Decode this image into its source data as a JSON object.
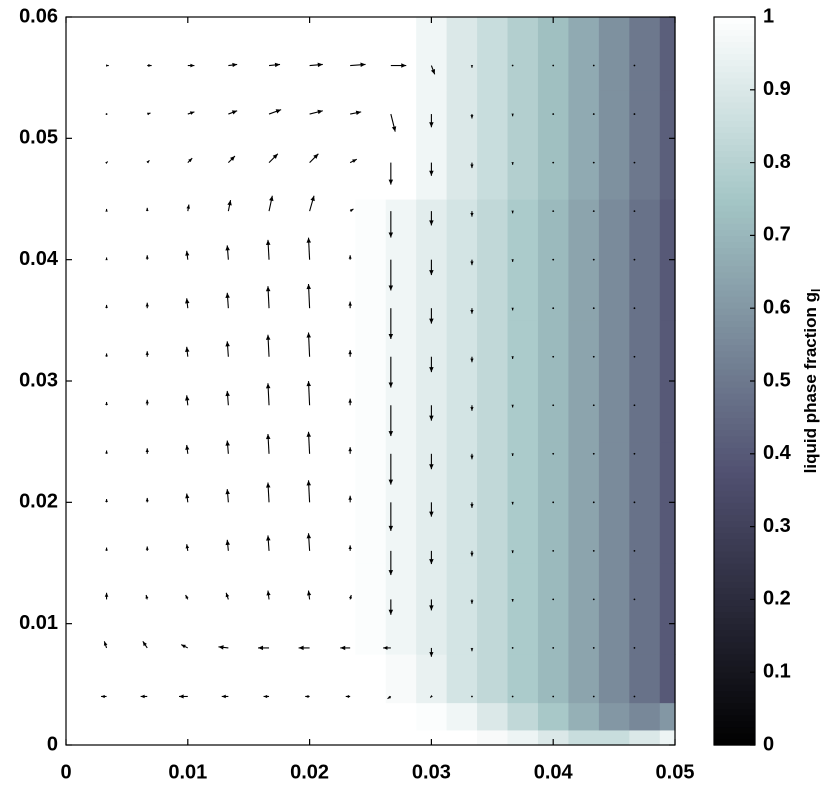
{
  "chart_data": {
    "type": "field",
    "xlim": [
      0,
      0.05
    ],
    "xticks": [
      0,
      0.01,
      0.02,
      0.03,
      0.04,
      0.05
    ],
    "ylim": [
      0,
      0.06
    ],
    "yticks": [
      0,
      0.01,
      0.02,
      0.03,
      0.04,
      0.05,
      0.06
    ],
    "colormap": [
      [
        0,
        "#000000"
      ],
      [
        0.375,
        "#515171"
      ],
      [
        0.75,
        "#a4c6c6"
      ],
      [
        1,
        "#ffffff"
      ]
    ],
    "arrow_color": "#000000",
    "colorbar": {
      "label": "liquid phase fraction g",
      "label_subscript": "l",
      "lim": [
        0,
        1
      ],
      "ticks": [
        0,
        0.1,
        0.2,
        0.3,
        0.4,
        0.5,
        0.6,
        0.7,
        0.8,
        0.9,
        1
      ]
    },
    "field": {
      "x": [
        0,
        0.0025,
        0.005,
        0.0075,
        0.01,
        0.0125,
        0.015,
        0.0175,
        0.02,
        0.0225,
        0.025,
        0.0275,
        0.03,
        0.0325,
        0.035,
        0.0375,
        0.04,
        0.0425,
        0.045,
        0.0475,
        0.05
      ],
      "y": [
        0.0005,
        0.002,
        0.005,
        0.01,
        0.02,
        0.03,
        0.04,
        0.05,
        0.058
      ],
      "values": [
        [
          1,
          1,
          1,
          1,
          1,
          1,
          1,
          1,
          1,
          1,
          1,
          1,
          1,
          1,
          0.98,
          0.95,
          0.9,
          0.85,
          0.85,
          0.9,
          0.95
        ],
        [
          1,
          1,
          1,
          1,
          1,
          1,
          1,
          1,
          1,
          1,
          1,
          1,
          0.99,
          0.96,
          0.9,
          0.83,
          0.76,
          0.68,
          0.6,
          0.55,
          0.6
        ],
        [
          1,
          1,
          1,
          1,
          1,
          1,
          1,
          1,
          1,
          1,
          1,
          0.98,
          0.94,
          0.88,
          0.83,
          0.77,
          0.71,
          0.64,
          0.56,
          0.48,
          0.4
        ],
        [
          1,
          1,
          1,
          1,
          1,
          1,
          1,
          1,
          1,
          1,
          0.99,
          0.96,
          0.92,
          0.88,
          0.83,
          0.77,
          0.71,
          0.64,
          0.56,
          0.48,
          0.4
        ],
        [
          1,
          1,
          1,
          1,
          1,
          1,
          1,
          1,
          1,
          1,
          0.99,
          0.96,
          0.92,
          0.88,
          0.83,
          0.77,
          0.71,
          0.64,
          0.56,
          0.48,
          0.4
        ],
        [
          1,
          1,
          1,
          1,
          1,
          1,
          1,
          1,
          1,
          1,
          0.99,
          0.96,
          0.92,
          0.88,
          0.83,
          0.77,
          0.71,
          0.64,
          0.56,
          0.48,
          0.4
        ],
        [
          1,
          1,
          1,
          1,
          1,
          1,
          1,
          1,
          1,
          1,
          0.99,
          0.96,
          0.92,
          0.88,
          0.83,
          0.77,
          0.71,
          0.64,
          0.56,
          0.48,
          0.4
        ],
        [
          1,
          1,
          1,
          1,
          1,
          1,
          1,
          1,
          1,
          1,
          1,
          1,
          0.96,
          0.9,
          0.85,
          0.79,
          0.73,
          0.66,
          0.58,
          0.5,
          0.42
        ],
        [
          1,
          1,
          1,
          1,
          1,
          1,
          1,
          1,
          1,
          1,
          1,
          1,
          0.96,
          0.9,
          0.85,
          0.79,
          0.73,
          0.66,
          0.58,
          0.5,
          0.42
        ]
      ]
    },
    "arrows": {
      "x": [
        0.00333,
        0.00667,
        0.01,
        0.01333,
        0.01667,
        0.02,
        0.02333,
        0.02667,
        0.03,
        0.03333,
        0.03667,
        0.04,
        0.04333,
        0.04667
      ],
      "y": [
        0.004,
        0.008,
        0.012,
        0.016,
        0.02,
        0.024,
        0.028,
        0.032,
        0.036,
        0.04,
        0.044,
        0.048,
        0.052,
        0.056
      ],
      "u": [
        [
          -5,
          -6,
          -8,
          -6,
          -5,
          -4,
          -4,
          -3,
          -1,
          0,
          0,
          0,
          0,
          0
        ],
        [
          -2,
          -4,
          -6,
          -9,
          -10,
          -10,
          -9,
          -7,
          0,
          0,
          0,
          0,
          0,
          0
        ],
        [
          0,
          -1,
          -2,
          -2,
          -1,
          -1,
          1,
          0,
          0,
          0,
          0,
          0,
          0,
          0
        ],
        [
          0,
          0,
          -1,
          -1,
          -1,
          -1,
          0,
          0,
          0,
          0,
          0,
          0,
          0,
          0
        ],
        [
          0,
          0,
          -1,
          -1,
          -1,
          -1,
          0,
          0,
          0,
          0,
          0,
          0,
          0,
          0
        ],
        [
          0,
          0,
          -1,
          -1,
          -1,
          -1,
          0,
          0,
          0,
          0,
          0,
          0,
          0,
          0
        ],
        [
          0,
          0,
          -1,
          -1,
          -1,
          -1,
          0,
          0,
          0,
          0,
          0,
          0,
          0,
          0
        ],
        [
          0,
          0,
          -1,
          -1,
          -1,
          -1,
          0,
          0,
          0,
          0,
          0,
          0,
          0,
          0
        ],
        [
          0,
          0,
          -1,
          -1,
          -1,
          -1,
          0,
          0,
          0,
          0,
          0,
          0,
          0,
          0
        ],
        [
          0,
          0,
          -1,
          -1,
          -1,
          -1,
          0,
          0,
          0,
          0,
          0,
          0,
          0,
          0
        ],
        [
          0,
          0,
          1,
          2,
          3,
          4,
          3,
          0,
          0,
          0,
          0,
          0,
          0,
          0
        ],
        [
          1,
          2,
          4,
          6,
          8,
          8,
          6,
          0,
          0,
          0,
          0,
          0,
          0,
          0
        ],
        [
          1,
          3,
          6,
          8,
          11,
          12,
          10,
          4,
          0,
          0,
          0,
          0,
          0,
          0
        ],
        [
          2,
          4,
          6,
          8,
          10,
          12,
          14,
          14,
          3,
          0,
          0,
          0,
          0,
          0
        ]
      ],
      "v": [
        [
          0,
          0,
          0,
          0,
          0,
          0,
          0,
          -2,
          -1,
          0,
          0,
          0,
          0,
          0
        ],
        [
          6,
          6,
          3,
          1,
          0,
          0,
          0,
          0,
          -8,
          -3,
          -1,
          0,
          0,
          0
        ],
        [
          6,
          4,
          4,
          6,
          8,
          8,
          4,
          -14,
          -10,
          -4,
          -2,
          -1,
          0,
          0
        ],
        [
          3,
          4,
          6,
          10,
          14,
          16,
          5,
          -22,
          -12,
          -5,
          -2,
          -1,
          0,
          0
        ],
        [
          3,
          4,
          8,
          12,
          18,
          20,
          6,
          -26,
          -13,
          -5,
          -2,
          -1,
          0,
          0
        ],
        [
          3,
          5,
          8,
          12,
          18,
          20,
          6,
          -28,
          -14,
          -5,
          -2,
          -1,
          0,
          0
        ],
        [
          3,
          5,
          9,
          13,
          20,
          22,
          6,
          -28,
          -14,
          -5,
          -2,
          -1,
          0,
          0
        ],
        [
          3,
          5,
          9,
          14,
          20,
          22,
          6,
          -28,
          -14,
          -5,
          -2,
          -1,
          0,
          0
        ],
        [
          3,
          5,
          9,
          14,
          20,
          22,
          6,
          -28,
          -14,
          -5,
          -2,
          -1,
          0,
          0
        ],
        [
          2,
          4,
          8,
          13,
          18,
          20,
          4,
          -28,
          -14,
          -5,
          -2,
          -1,
          0,
          0
        ],
        [
          2,
          3,
          6,
          10,
          14,
          14,
          2,
          -24,
          -13,
          -5,
          -2,
          -1,
          0,
          0
        ],
        [
          1,
          2,
          4,
          6,
          8,
          8,
          3,
          -20,
          -12,
          -5,
          -2,
          -1,
          0,
          0
        ],
        [
          0,
          1,
          2,
          3,
          4,
          3,
          2,
          -16,
          -12,
          -4,
          -2,
          -1,
          0,
          0
        ],
        [
          0,
          0,
          0,
          1,
          1,
          1,
          1,
          0,
          -8,
          -2,
          -1,
          0,
          0,
          0
        ]
      ]
    }
  }
}
